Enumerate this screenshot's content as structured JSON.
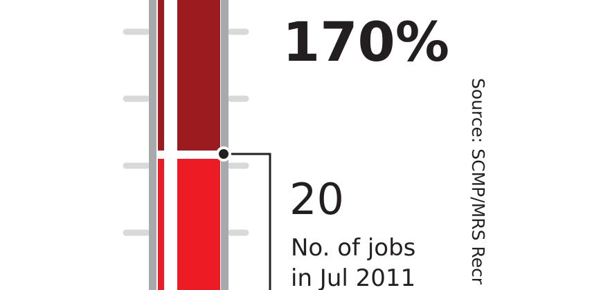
{
  "headline": {
    "value": "170%"
  },
  "callout": {
    "value": "20",
    "lines": [
      "No. of jobs",
      "in Jul 2011"
    ]
  },
  "source": "Source: SCMP/MRS Recr"
}
